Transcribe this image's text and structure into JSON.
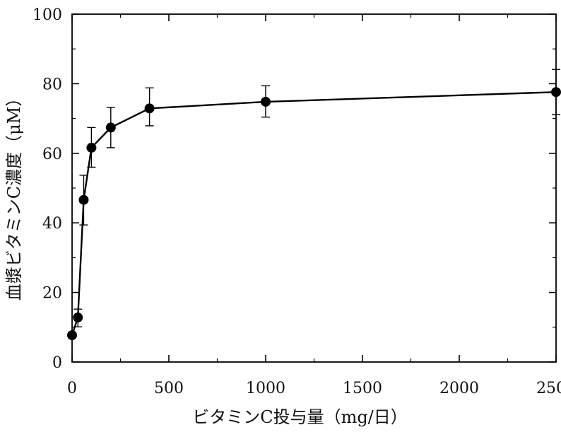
{
  "chart_data": {
    "type": "line",
    "title": "",
    "xlabel": "ビタミンC投与量（mg/日）",
    "ylabel": "血漿ビタミンC濃度（μM）",
    "xlim": [
      0,
      2500
    ],
    "ylim": [
      0,
      100
    ],
    "xticks": [
      0,
      500,
      1000,
      1500,
      2000,
      2500
    ],
    "yticks": [
      0,
      20,
      40,
      60,
      80,
      100
    ],
    "grid": false,
    "legend": "none",
    "series": [
      {
        "x": [
          0,
          30,
          60,
          100,
          200,
          400,
          1000,
          2500
        ],
        "y": [
          7.7,
          12.8,
          46.6,
          61.6,
          67.4,
          72.9,
          74.8,
          77.6
        ],
        "error_low": [
          7.7,
          10.1,
          39.4,
          56.0,
          61.6,
          67.9,
          70.4,
          71.1
        ],
        "error_high": [
          7.7,
          15.2,
          53.7,
          67.4,
          73.2,
          78.8,
          79.4,
          84.1
        ],
        "color": "#000000",
        "marker": "circle"
      }
    ]
  }
}
